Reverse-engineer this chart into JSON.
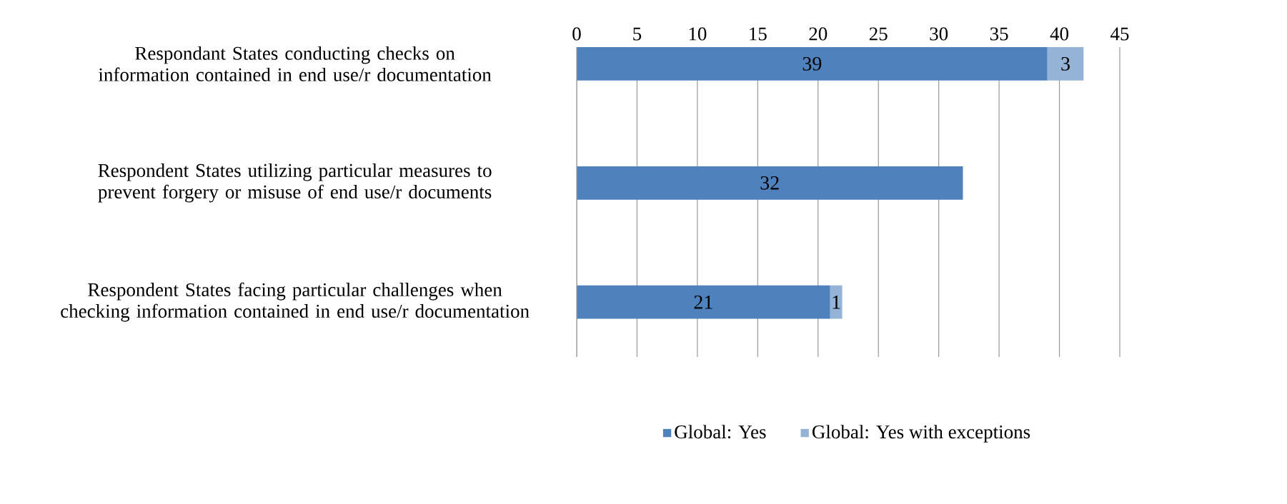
{
  "chart_data": {
    "type": "bar",
    "orientation": "horizontal",
    "stacked": true,
    "categories": [
      "Respondant States conducting checks on information contained in end use/r documentation",
      "Respondent States utilizing particular measures to prevent forgery or misuse of end use/r documents",
      "Respondent States facing particular challenges when checking information contained in end use/r documentation"
    ],
    "series": [
      {
        "name": "Global: Yes",
        "color": "#4f81bd",
        "values": [
          39,
          32,
          21
        ]
      },
      {
        "name": "Global: Yes with exceptions",
        "color": "#95b3d7",
        "values": [
          3,
          null,
          1
        ]
      }
    ],
    "xlim": [
      0,
      45
    ],
    "xticks": [
      0,
      5,
      10,
      15,
      20,
      25,
      30,
      35,
      40,
      45
    ],
    "grid": "x",
    "legend": "bottom",
    "data_labels": true
  }
}
